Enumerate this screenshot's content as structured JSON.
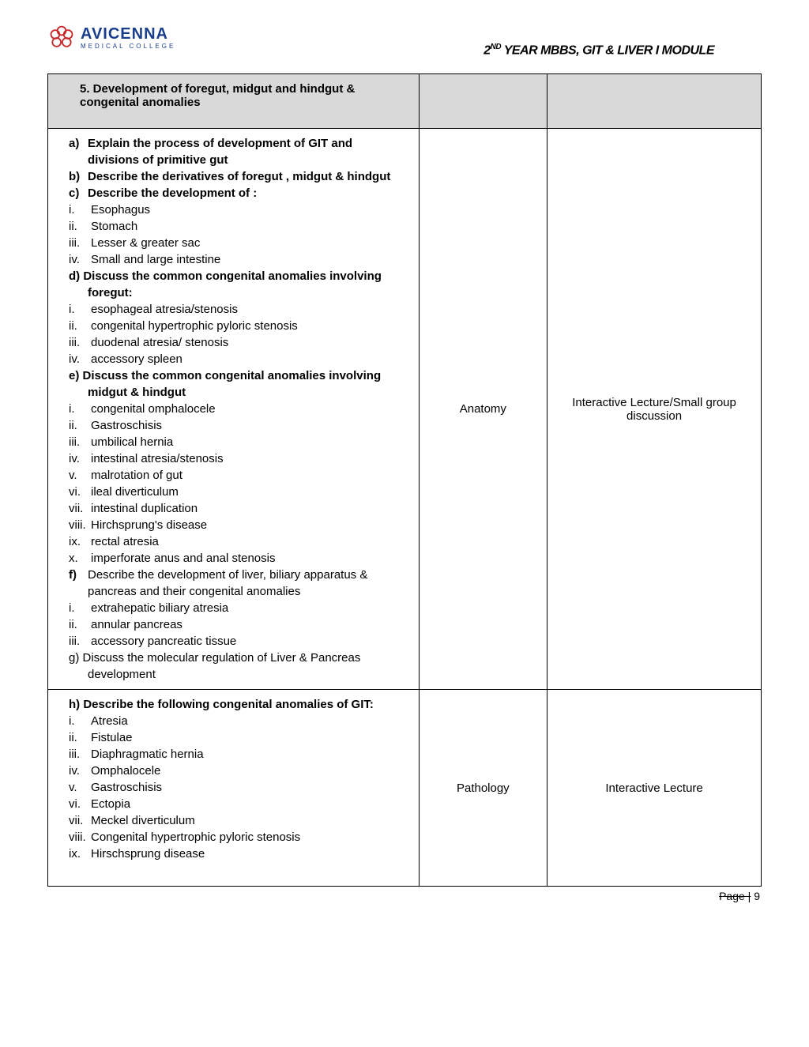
{
  "logo": {
    "main": "AVICENNA",
    "sub": "MEDICAL COLLEGE",
    "color": "#1a3e8c",
    "flower_color": "#c62828"
  },
  "header_title_pre": "2",
  "header_title_sup": "ND",
  "header_title_post": " YEAR MBBS, GIT & LIVER I MODULE",
  "section_title": "5. Development of foregut, midgut and hindgut & congenital anomalies",
  "row1": {
    "subject": "Anatomy",
    "method": "Interactive Lecture/Small group discussion",
    "items": [
      {
        "label": "a)",
        "bold": true,
        "text": "Explain the process of development of GIT and divisions of primitive gut"
      },
      {
        "label": "b)",
        "bold": true,
        "text": "Describe the derivatives of foregut , midgut & hindgut"
      },
      {
        "label": "c)",
        "bold": true,
        "text": "Describe the development of :"
      },
      {
        "roman": [
          {
            "n": "i.",
            "t": "Esophagus"
          },
          {
            "n": "ii.",
            "t": "Stomach"
          },
          {
            "n": "iii.",
            "t": "Lesser & greater sac"
          },
          {
            "n": "iv.",
            "t": "Small and large intestine"
          }
        ]
      },
      {
        "label": "d)",
        "bold": true,
        "noindent": true,
        "text": "Discuss the common congenital anomalies involving foregut:"
      },
      {
        "roman": [
          {
            "n": "i.",
            "t": "esophageal atresia/stenosis"
          },
          {
            "n": "ii.",
            "t": "congenital hypertrophic pyloric stenosis"
          },
          {
            "n": "iii.",
            "t": "duodenal atresia/ stenosis"
          },
          {
            "n": "iv.",
            "t": "accessory spleen"
          }
        ]
      },
      {
        "label": "e)",
        "bold": true,
        "noindent": true,
        "text": "Discuss the common congenital anomalies involving midgut & hindgut"
      },
      {
        "roman": [
          {
            "n": "i.",
            "t": "congenital omphalocele"
          },
          {
            "n": "ii.",
            "t": "Gastroschisis"
          },
          {
            "n": "iii.",
            "t": "umbilical hernia"
          },
          {
            "n": "iv.",
            "t": "intestinal atresia/stenosis"
          },
          {
            "n": "v.",
            "t": "malrotation of gut"
          },
          {
            "n": "vi.",
            "t": "ileal diverticulum"
          },
          {
            "n": "vii.",
            "t": "intestinal duplication"
          },
          {
            "n": "viii.",
            "t": "Hirchsprung's disease"
          },
          {
            "n": "ix.",
            "t": "rectal atresia"
          },
          {
            "n": "x.",
            "t": "imperforate anus and anal stenosis"
          }
        ]
      },
      {
        "label": "f)",
        "bold": false,
        "text": "Describe the development of liver, biliary apparatus & pancreas and their congenital anomalies"
      },
      {
        "roman": [
          {
            "n": "i.",
            "t": "extrahepatic biliary atresia"
          },
          {
            "n": "ii.",
            "t": "annular pancreas"
          },
          {
            "n": "iii.",
            "t": "accessory pancreatic tissue"
          }
        ]
      },
      {
        "label": "g)",
        "bold": false,
        "noindent": true,
        "text": "Discuss the molecular regulation of Liver & Pancreas development"
      }
    ]
  },
  "row2": {
    "subject": "Pathology",
    "method": "Interactive Lecture",
    "items": [
      {
        "label": "h)",
        "bold": true,
        "noindent": true,
        "text": "Describe the following congenital anomalies of GIT:"
      },
      {
        "roman": [
          {
            "n": "i.",
            "t": "Atresia"
          },
          {
            "n": "ii.",
            "t": "Fistulae"
          },
          {
            "n": "iii.",
            "t": "Diaphragmatic hernia"
          },
          {
            "n": "iv.",
            "t": "Omphalocele"
          },
          {
            "n": "v.",
            "t": "Gastroschisis"
          },
          {
            "n": "vi.",
            "t": "Ectopia"
          },
          {
            "n": "vii.",
            "t": "Meckel diverticulum"
          },
          {
            "n": "viii.",
            "t": "Congenital hypertrophic pyloric stenosis"
          },
          {
            "n": "ix.",
            "t": "Hirschsprung disease"
          }
        ]
      }
    ]
  },
  "footer": {
    "label": "Page |",
    "num": "9"
  }
}
